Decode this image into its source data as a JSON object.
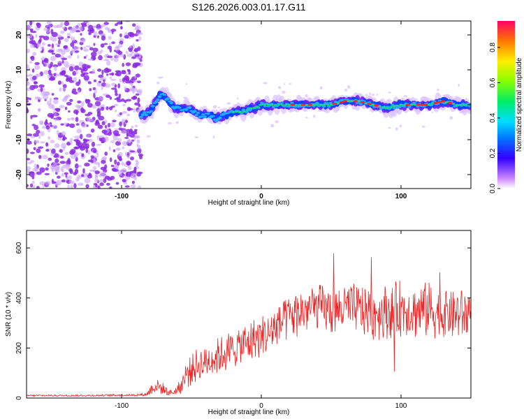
{
  "title": "S126.2026.003.01.17.G11",
  "colors": {
    "snr_line": "#ee2222",
    "track_core": "#22aaff",
    "track_hot": "#ff2222",
    "noise": "#8a2be2",
    "noise_light": "#c9a3ff"
  },
  "chart_data": [
    {
      "type": "heatmap",
      "title": "S126.2026.003.01.17.G11",
      "xlabel": "Height of straight line (km)",
      "ylabel": "Frequency (Hz)",
      "xlim": [
        -168,
        150
      ],
      "ylim": [
        -24,
        24
      ],
      "xticks": [
        -100,
        0,
        100
      ],
      "yticks": [
        -20,
        -10,
        0,
        10,
        20
      ],
      "colorbar": {
        "label": "Normalized spectral amplitude",
        "range": [
          0.0,
          0.95
        ],
        "ticks": [
          0.0,
          0.2,
          0.4,
          0.6,
          0.8
        ]
      },
      "noise_region": {
        "x_from": -168,
        "x_to": -86
      },
      "track": {
        "x": [
          -86,
          -80,
          -75,
          -72,
          -68,
          -64,
          -60,
          -56,
          -52,
          -48,
          -44,
          -40,
          -36,
          -32,
          -28,
          -24,
          -20,
          -16,
          -12,
          -8,
          -4,
          0,
          10,
          20,
          30,
          40,
          50,
          60,
          70,
          80,
          90,
          100,
          110,
          120,
          130,
          140,
          150
        ],
        "freq": [
          -3,
          -2,
          1,
          3,
          2,
          0,
          -1,
          -1,
          -1,
          -2,
          -3,
          -3,
          -3,
          -4,
          -3,
          -3,
          -2,
          -2,
          -2,
          -1,
          -1,
          0,
          0,
          0,
          0,
          0,
          0,
          1,
          1,
          0,
          -1,
          0,
          0,
          0,
          1,
          0,
          0
        ]
      }
    },
    {
      "type": "line",
      "xlabel": "Height of straight line (km)",
      "ylabel": "SNR (10 * v/v)",
      "xlim": [
        -168,
        150
      ],
      "ylim": [
        0,
        670
      ],
      "xticks": [
        -100,
        0,
        100
      ],
      "yticks": [
        0,
        200,
        400,
        600
      ],
      "series": [
        {
          "name": "SNR",
          "x": [
            -168,
            -150,
            -120,
            -100,
            -90,
            -82,
            -78,
            -74,
            -70,
            -66,
            -62,
            -58,
            -54,
            -50,
            -46,
            -42,
            -38,
            -34,
            -30,
            -26,
            -22,
            -18,
            -14,
            -10,
            -6,
            -2,
            2,
            6,
            10,
            14,
            18,
            22,
            26,
            30,
            35,
            40,
            50,
            60,
            70,
            80,
            90,
            100,
            110,
            120,
            130,
            140,
            150
          ],
          "values": [
            10,
            10,
            10,
            12,
            12,
            15,
            40,
            50,
            35,
            20,
            25,
            45,
            90,
            120,
            130,
            140,
            150,
            160,
            170,
            180,
            190,
            200,
            210,
            220,
            230,
            240,
            250,
            260,
            280,
            300,
            320,
            330,
            340,
            350,
            360,
            360,
            350,
            360,
            350,
            340,
            350,
            360,
            350,
            350,
            340,
            340,
            340
          ],
          "spread": [
            4,
            4,
            4,
            5,
            5,
            8,
            30,
            30,
            25,
            12,
            15,
            30,
            60,
            70,
            70,
            70,
            70,
            75,
            75,
            80,
            80,
            80,
            85,
            85,
            90,
            90,
            90,
            95,
            95,
            95,
            100,
            100,
            100,
            100,
            100,
            100,
            100,
            105,
            110,
            115,
            115,
            115,
            115,
            115,
            110,
            110,
            110
          ]
        }
      ]
    }
  ]
}
